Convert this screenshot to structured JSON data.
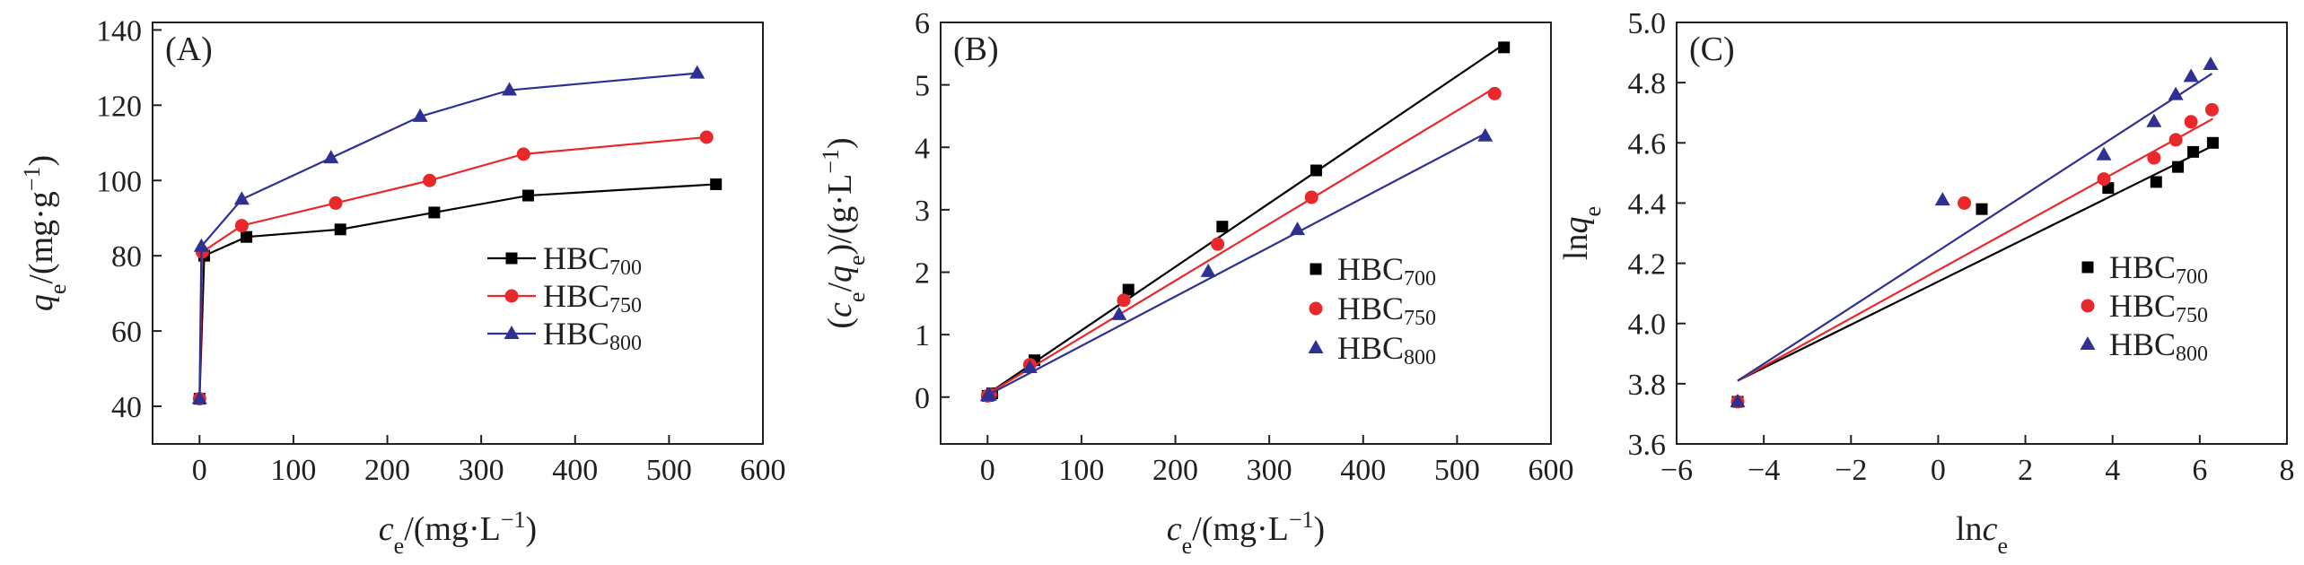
{
  "colors": {
    "axis": "#231f20",
    "HBC700": "#000000",
    "HBC750": "#e8282b",
    "HBC800": "#2e3192"
  },
  "chart_data": [
    {
      "panel": "(A)",
      "type": "line",
      "xlabel": {
        "italic": "c",
        "sub": "e",
        "rest": "/(mg·L",
        "sup": "−1",
        "close": ")"
      },
      "ylabel": {
        "italic": "q",
        "sub": "e",
        "rest": "/(mg·g",
        "sup": "−1",
        "close": ")"
      },
      "xlim": [
        -50,
        600
      ],
      "ylim": [
        30,
        142
      ],
      "xticks": [
        0,
        100,
        200,
        300,
        400,
        500,
        600
      ],
      "yticks": [
        40,
        60,
        80,
        100,
        120,
        140
      ],
      "legend": "center-right",
      "series": [
        {
          "name": "HBC",
          "name_sub": "700",
          "color": "HBC700",
          "marker": "square",
          "x": [
            0,
            5,
            50,
            150,
            250,
            350,
            550
          ],
          "y": [
            42,
            80,
            85,
            87,
            91.5,
            96,
            99
          ]
        },
        {
          "name": "HBC",
          "name_sub": "750",
          "color": "HBC750",
          "marker": "circle",
          "x": [
            0,
            3,
            45,
            145,
            245,
            345,
            540
          ],
          "y": [
            42,
            81,
            88,
            94,
            100,
            107,
            111.5
          ]
        },
        {
          "name": "HBC",
          "name_sub": "800",
          "color": "HBC800",
          "marker": "triangle",
          "x": [
            0,
            2,
            45,
            140,
            235,
            330,
            530
          ],
          "y": [
            42,
            82.5,
            95,
            106,
            117,
            124,
            128.5
          ]
        }
      ]
    },
    {
      "panel": "(B)",
      "type": "scatter",
      "xlabel": {
        "italic": "c",
        "sub": "e",
        "rest": "/(mg·L",
        "sup": "−1",
        "close": ")"
      },
      "ylabel": {
        "pre": "(",
        "italic": "c",
        "sub": "e",
        "mid": "/",
        "italic2": "q",
        "sub2": "e",
        "rest": ")/(g·L",
        "sup": "−1",
        "close": ")"
      },
      "xlim": [
        -50,
        600
      ],
      "ylim": [
        -0.75,
        6
      ],
      "xticks": [
        0,
        100,
        200,
        300,
        400,
        500,
        600
      ],
      "yticks": [
        0,
        1,
        2,
        3,
        4,
        5,
        6
      ],
      "legend": "center-right",
      "series": [
        {
          "name": "HBC",
          "name_sub": "700",
          "color": "HBC700",
          "marker": "square",
          "x": [
            0,
            5,
            50,
            150,
            250,
            350,
            550
          ],
          "y": [
            0.02,
            0.06,
            0.59,
            1.72,
            2.73,
            3.63,
            5.6
          ],
          "fit": [
            [
              0,
              0.05
            ],
            [
              550,
              5.65
            ]
          ]
        },
        {
          "name": "HBC",
          "name_sub": "750",
          "color": "HBC750",
          "marker": "circle",
          "x": [
            0,
            3,
            45,
            145,
            245,
            345,
            540
          ],
          "y": [
            0.02,
            0.04,
            0.52,
            1.55,
            2.45,
            3.2,
            4.86
          ],
          "fit": [
            [
              0,
              0.05
            ],
            [
              540,
              4.95
            ]
          ]
        },
        {
          "name": "HBC",
          "name_sub": "800",
          "color": "HBC800",
          "marker": "triangle",
          "x": [
            0,
            2,
            45,
            140,
            235,
            330,
            530
          ],
          "y": [
            0.02,
            0.03,
            0.47,
            1.32,
            2.01,
            2.68,
            4.18
          ],
          "fit": [
            [
              0,
              0.03
            ],
            [
              530,
              4.22
            ]
          ]
        }
      ]
    },
    {
      "panel": "(C)",
      "type": "scatter",
      "xlabel": {
        "pre": "ln",
        "italic": "c",
        "sub": "e"
      },
      "ylabel": {
        "pre": "ln",
        "italic": "q",
        "sub": "e"
      },
      "xlim": [
        -6,
        8
      ],
      "ylim": [
        3.6,
        5.0
      ],
      "xticks": [
        -6,
        -4,
        -2,
        0,
        2,
        4,
        6,
        8
      ],
      "xtick_labels": [
        "−6",
        "−4",
        "−2",
        "0",
        "2",
        "4",
        "6",
        "8"
      ],
      "yticks": [
        3.6,
        3.8,
        4.0,
        4.2,
        4.4,
        4.6,
        4.8,
        5.0
      ],
      "ytick_labels": [
        "3.6",
        "3.8",
        "4.0",
        "4.2",
        "4.4",
        "4.6",
        "4.8",
        "5.0"
      ],
      "legend": "center-right",
      "series": [
        {
          "name": "HBC",
          "name_sub": "700",
          "color": "HBC700",
          "marker": "square",
          "x": [
            -4.6,
            1.0,
            3.9,
            5.0,
            5.5,
            5.85,
            6.3
          ],
          "y": [
            3.74,
            4.38,
            4.45,
            4.47,
            4.52,
            4.57,
            4.6
          ],
          "fit": [
            [
              -4.6,
              3.81
            ],
            [
              6.3,
              4.59
            ]
          ]
        },
        {
          "name": "HBC",
          "name_sub": "750",
          "color": "HBC750",
          "marker": "circle",
          "x": [
            -4.6,
            0.6,
            3.8,
            4.95,
            5.45,
            5.8,
            6.28
          ],
          "y": [
            3.74,
            4.4,
            4.48,
            4.55,
            4.61,
            4.67,
            4.71
          ],
          "fit": [
            [
              -4.6,
              3.81
            ],
            [
              6.3,
              4.68
            ]
          ]
        },
        {
          "name": "HBC",
          "name_sub": "800",
          "color": "HBC800",
          "marker": "triangle",
          "x": [
            -4.6,
            0.1,
            3.8,
            4.95,
            5.45,
            5.8,
            6.25
          ],
          "y": [
            3.74,
            4.41,
            4.56,
            4.67,
            4.76,
            4.82,
            4.86
          ],
          "fit": [
            [
              -4.6,
              3.81
            ],
            [
              6.28,
              4.83
            ]
          ]
        }
      ]
    }
  ]
}
